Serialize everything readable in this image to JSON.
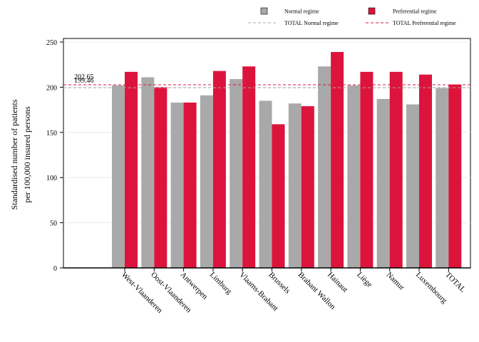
{
  "chart_data": {
    "type": "bar",
    "title": "",
    "ylabel_lines": [
      "Standardised number of patients",
      "per 100,000 insured persons"
    ],
    "xlabel": "",
    "ylim": [
      0,
      250
    ],
    "yticks": [
      0,
      50,
      100,
      150,
      200,
      250
    ],
    "grid": true,
    "legend_position": "top",
    "categories": [
      "West-Vlaanderen",
      "Oost-Vlaanderen",
      "Antwerpen",
      "Limburg",
      "Vlaams-Brabant",
      "Brussels",
      "Brabant Wallon",
      "Hainaut",
      "Liège",
      "Namur",
      "Luxembourg",
      "TOTAL"
    ],
    "series": [
      {
        "name": "Normal regime",
        "color": "#a9a9a9",
        "values": [
          202,
          211,
          183,
          191,
          209,
          185,
          182,
          223,
          202,
          187,
          181,
          199
        ]
      },
      {
        "name": "Preferential regime",
        "color": "#dc143c",
        "values": [
          217,
          200,
          183,
          218,
          223,
          159,
          179,
          239,
          217,
          217,
          214,
          203
        ]
      }
    ],
    "reference_lines": [
      {
        "name": "TOTAL Normal regime",
        "value": 199.46,
        "label": "199.46",
        "color": "#a9a9a9"
      },
      {
        "name": "TOTAL Preferential regime",
        "value": 202.65,
        "label": "202.65",
        "color": "#dc143c"
      }
    ]
  }
}
